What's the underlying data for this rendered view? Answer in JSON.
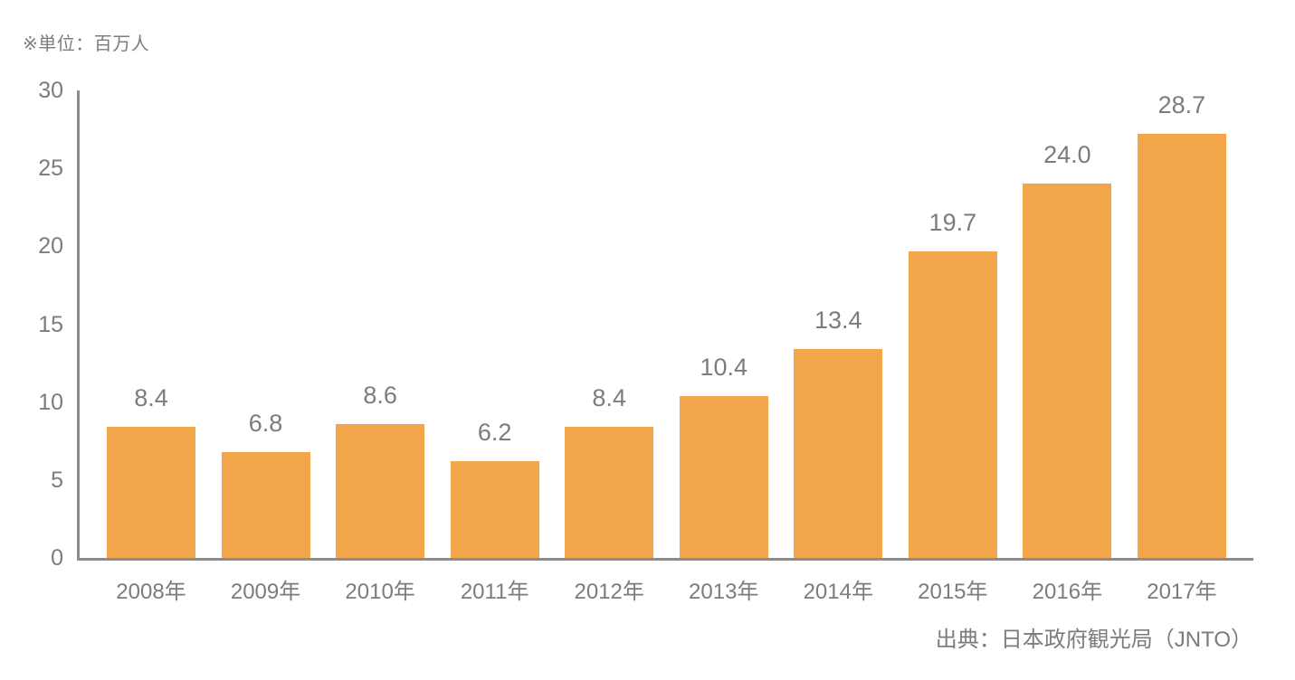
{
  "chart_data": {
    "type": "bar",
    "unit_note": "※単位：百万人",
    "source": "出典：日本政府観光局（JNTO）",
    "categories": [
      "2008年",
      "2009年",
      "2010年",
      "2011年",
      "2012年",
      "2013年",
      "2014年",
      "2015年",
      "2016年",
      "2017年"
    ],
    "values": [
      8.4,
      6.8,
      8.6,
      6.2,
      8.4,
      10.4,
      13.4,
      19.7,
      24.0,
      28.7
    ],
    "value_labels": [
      "8.4",
      "6.8",
      "8.6",
      "6.2",
      "8.4",
      "10.4",
      "13.4",
      "19.7",
      "24.0",
      "28.7"
    ],
    "ylim": [
      0,
      30
    ],
    "ytick_step": 5,
    "grid": false,
    "legend": false,
    "bar_color": "#f3a649",
    "axis_color": "#8c8c8c",
    "label_color": "#7c7c7c"
  }
}
